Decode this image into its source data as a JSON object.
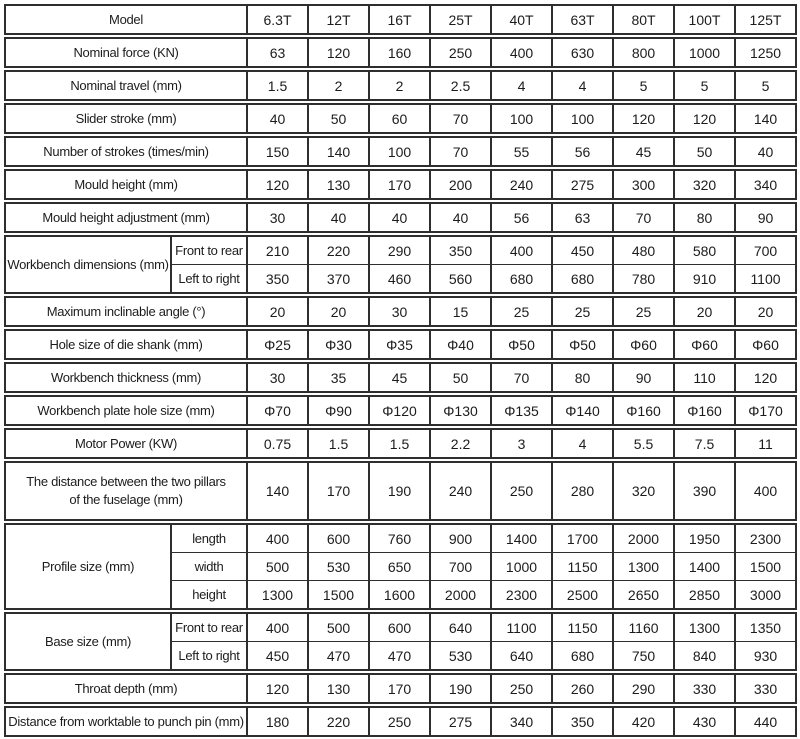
{
  "colors": {
    "border": "#2e2e2e",
    "text": "#1c1c1c",
    "background": "#ffffff"
  },
  "table": {
    "sections": [
      {
        "rows": [
          {
            "label": "Model",
            "values": [
              "6.3T",
              "12T",
              "16T",
              "25T",
              "40T",
              "63T",
              "80T",
              "100T",
              "125T"
            ]
          }
        ]
      },
      {
        "rows": [
          {
            "label": "Nominal force (KN)",
            "values": [
              "63",
              "120",
              "160",
              "250",
              "400",
              "630",
              "800",
              "1000",
              "1250"
            ]
          }
        ]
      },
      {
        "rows": [
          {
            "label": "Nominal travel (mm)",
            "values": [
              "1.5",
              "2",
              "2",
              "2.5",
              "4",
              "4",
              "5",
              "5",
              "5"
            ]
          }
        ]
      },
      {
        "rows": [
          {
            "label": "Slider stroke (mm)",
            "values": [
              "40",
              "50",
              "60",
              "70",
              "100",
              "100",
              "120",
              "120",
              "140"
            ]
          }
        ]
      },
      {
        "rows": [
          {
            "label": "Number of strokes (times/min)",
            "values": [
              "150",
              "140",
              "100",
              "70",
              "55",
              "56",
              "45",
              "50",
              "40"
            ]
          }
        ]
      },
      {
        "rows": [
          {
            "label": "Mould height (mm)",
            "values": [
              "120",
              "130",
              "170",
              "200",
              "240",
              "275",
              "300",
              "320",
              "340"
            ]
          }
        ]
      },
      {
        "rows": [
          {
            "label": "Mould height adjustment (mm)",
            "values": [
              "30",
              "40",
              "40",
              "40",
              "56",
              "63",
              "70",
              "80",
              "90"
            ]
          }
        ]
      },
      {
        "group_label": "Workbench dimensions (mm)",
        "rows": [
          {
            "sub": "Front to rear",
            "values": [
              "210",
              "220",
              "290",
              "350",
              "400",
              "450",
              "480",
              "580",
              "700"
            ]
          },
          {
            "sub": "Left to right",
            "values": [
              "350",
              "370",
              "460",
              "560",
              "680",
              "680",
              "780",
              "910",
              "1100"
            ]
          }
        ]
      },
      {
        "rows": [
          {
            "label": "Maximum inclinable angle (°)",
            "values": [
              "20",
              "20",
              "30",
              "15",
              "25",
              "25",
              "25",
              "20",
              "20"
            ]
          }
        ]
      },
      {
        "rows": [
          {
            "label": "Hole size of die shank (mm)",
            "values": [
              "Φ25",
              "Φ30",
              "Φ35",
              "Φ40",
              "Φ50",
              "Φ50",
              "Φ60",
              "Φ60",
              "Φ60"
            ]
          }
        ]
      },
      {
        "rows": [
          {
            "label": "Workbench thickness (mm)",
            "values": [
              "30",
              "35",
              "45",
              "50",
              "70",
              "80",
              "90",
              "110",
              "120"
            ]
          }
        ]
      },
      {
        "rows": [
          {
            "label": "Workbench plate hole size (mm)",
            "values": [
              "Φ70",
              "Φ90",
              "Φ120",
              "Φ130",
              "Φ135",
              "Φ140",
              "Φ160",
              "Φ160",
              "Φ170"
            ]
          }
        ]
      },
      {
        "rows": [
          {
            "label": "Motor Power (KW)",
            "values": [
              "0.75",
              "1.5",
              "1.5",
              "2.2",
              "3",
              "4",
              "5.5",
              "7.5",
              "11"
            ]
          }
        ]
      },
      {
        "rows": [
          {
            "label": "The distance between the two pillars of the fuselage (mm)",
            "tall": true,
            "values": [
              "140",
              "170",
              "190",
              "240",
              "250",
              "280",
              "320",
              "390",
              "400"
            ]
          }
        ]
      },
      {
        "group_label": "Profile size (mm)",
        "rows": [
          {
            "sub": "length",
            "values": [
              "400",
              "600",
              "760",
              "900",
              "1400",
              "1700",
              "2000",
              "1950",
              "2300"
            ]
          },
          {
            "sub": "width",
            "values": [
              "500",
              "530",
              "650",
              "700",
              "1000",
              "1150",
              "1300",
              "1400",
              "1500"
            ]
          },
          {
            "sub": "height",
            "values": [
              "1300",
              "1500",
              "1600",
              "2000",
              "2300",
              "2500",
              "2650",
              "2850",
              "3000"
            ]
          }
        ]
      },
      {
        "group_label": "Base size (mm)",
        "rows": [
          {
            "sub": "Front to rear",
            "values": [
              "400",
              "500",
              "600",
              "640",
              "1100",
              "1150",
              "1160",
              "1300",
              "1350"
            ]
          },
          {
            "sub": "Left to right",
            "values": [
              "450",
              "470",
              "470",
              "530",
              "640",
              "680",
              "750",
              "840",
              "930"
            ]
          }
        ]
      },
      {
        "rows": [
          {
            "label": "Throat depth (mm)",
            "values": [
              "120",
              "130",
              "170",
              "190",
              "250",
              "260",
              "290",
              "330",
              "330"
            ]
          }
        ]
      },
      {
        "rows": [
          {
            "label": "Distance from worktable to punch pin (mm)",
            "values": [
              "180",
              "220",
              "250",
              "275",
              "340",
              "350",
              "420",
              "430",
              "440"
            ]
          }
        ]
      }
    ]
  }
}
